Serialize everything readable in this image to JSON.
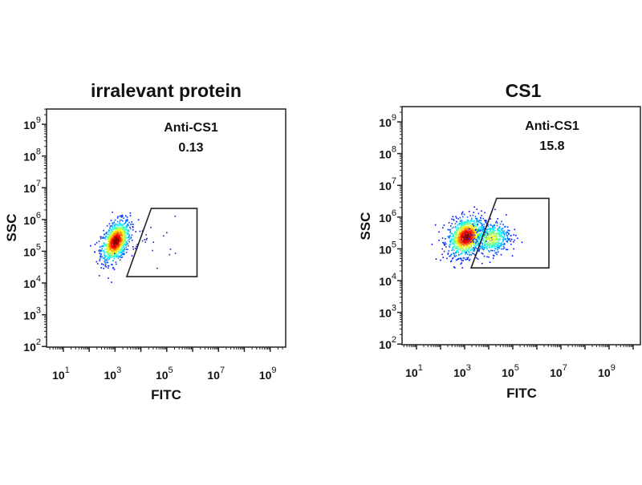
{
  "chart_data": [
    {
      "type": "scatter",
      "title": "irralevant protein",
      "xlabel": "FITC",
      "ylabel": "SSC",
      "xscale": "log",
      "yscale": "log",
      "xlim_log10": [
        0.35,
        9.6
      ],
      "ylim_log10": [
        1.98,
        9.48
      ],
      "xticks": [
        "1",
        "3",
        "5",
        "7",
        "9"
      ],
      "yticks": [
        "2",
        "3",
        "4",
        "5",
        "6",
        "7",
        "8",
        "9"
      ],
      "tick_base": "10",
      "gate": {
        "name": "Anti-CS1",
        "value": "0.13",
        "polygon_log10": [
          [
            3.45,
            4.2
          ],
          [
            4.4,
            6.35
          ],
          [
            6.17,
            6.35
          ],
          [
            6.17,
            4.2
          ]
        ]
      },
      "populations": [
        {
          "center_log10": [
            3.0,
            5.33
          ],
          "spread_log10": [
            0.28,
            0.3
          ],
          "count": 900,
          "tilt": 0.5
        },
        {
          "center_log10": [
            4.3,
            5.4
          ],
          "spread_log10": [
            0.6,
            0.35
          ],
          "count": 25,
          "tilt": 0
        }
      ]
    },
    {
      "type": "scatter",
      "title": "CS1",
      "xlabel": "FITC",
      "ylabel": "SSC",
      "xscale": "log",
      "yscale": "log",
      "xlim_log10": [
        0.4,
        10.3
      ],
      "ylim_log10": [
        1.98,
        9.48
      ],
      "xticks": [
        "1",
        "3",
        "5",
        "7",
        "9"
      ],
      "yticks": [
        "2",
        "3",
        "4",
        "5",
        "6",
        "7",
        "8",
        "9"
      ],
      "tick_base": "10",
      "gate": {
        "name": "Anti-CS1",
        "value": "15.8",
        "polygon_log10": [
          [
            3.27,
            4.4
          ],
          [
            4.33,
            6.59
          ],
          [
            6.5,
            6.59
          ],
          [
            6.5,
            4.4
          ]
        ]
      },
      "populations": [
        {
          "center_log10": [
            3.05,
            5.4
          ],
          "spread_log10": [
            0.38,
            0.3
          ],
          "count": 1000,
          "tilt": 0.2
        },
        {
          "center_log10": [
            4.1,
            5.35
          ],
          "spread_log10": [
            0.38,
            0.25
          ],
          "count": 450,
          "tilt": 0.1
        }
      ]
    }
  ]
}
